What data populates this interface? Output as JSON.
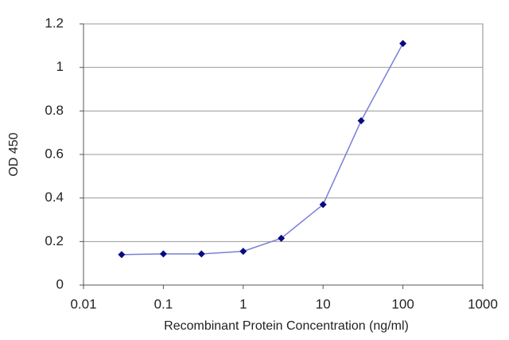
{
  "chart_data": {
    "type": "line",
    "x_label": "Recombinant Protein Concentration (ng/ml)",
    "y_label": "OD 450",
    "x": [
      0.03,
      0.1,
      0.3,
      1,
      3,
      10,
      30,
      100
    ],
    "values": [
      0.14,
      0.143,
      0.143,
      0.155,
      0.215,
      0.37,
      0.755,
      1.11
    ],
    "color": "#7b7fd8",
    "marker_color": "#0a0a80",
    "marker": "diamond",
    "xscale": "log",
    "xlim": [
      0.01,
      1000
    ],
    "xticks": [
      0.01,
      0.1,
      1,
      10,
      100,
      1000
    ],
    "ylim": [
      0,
      1.2
    ],
    "yticks": [
      0,
      0.2,
      0.4,
      0.6,
      0.8,
      1,
      1.2
    ],
    "grid": true
  }
}
